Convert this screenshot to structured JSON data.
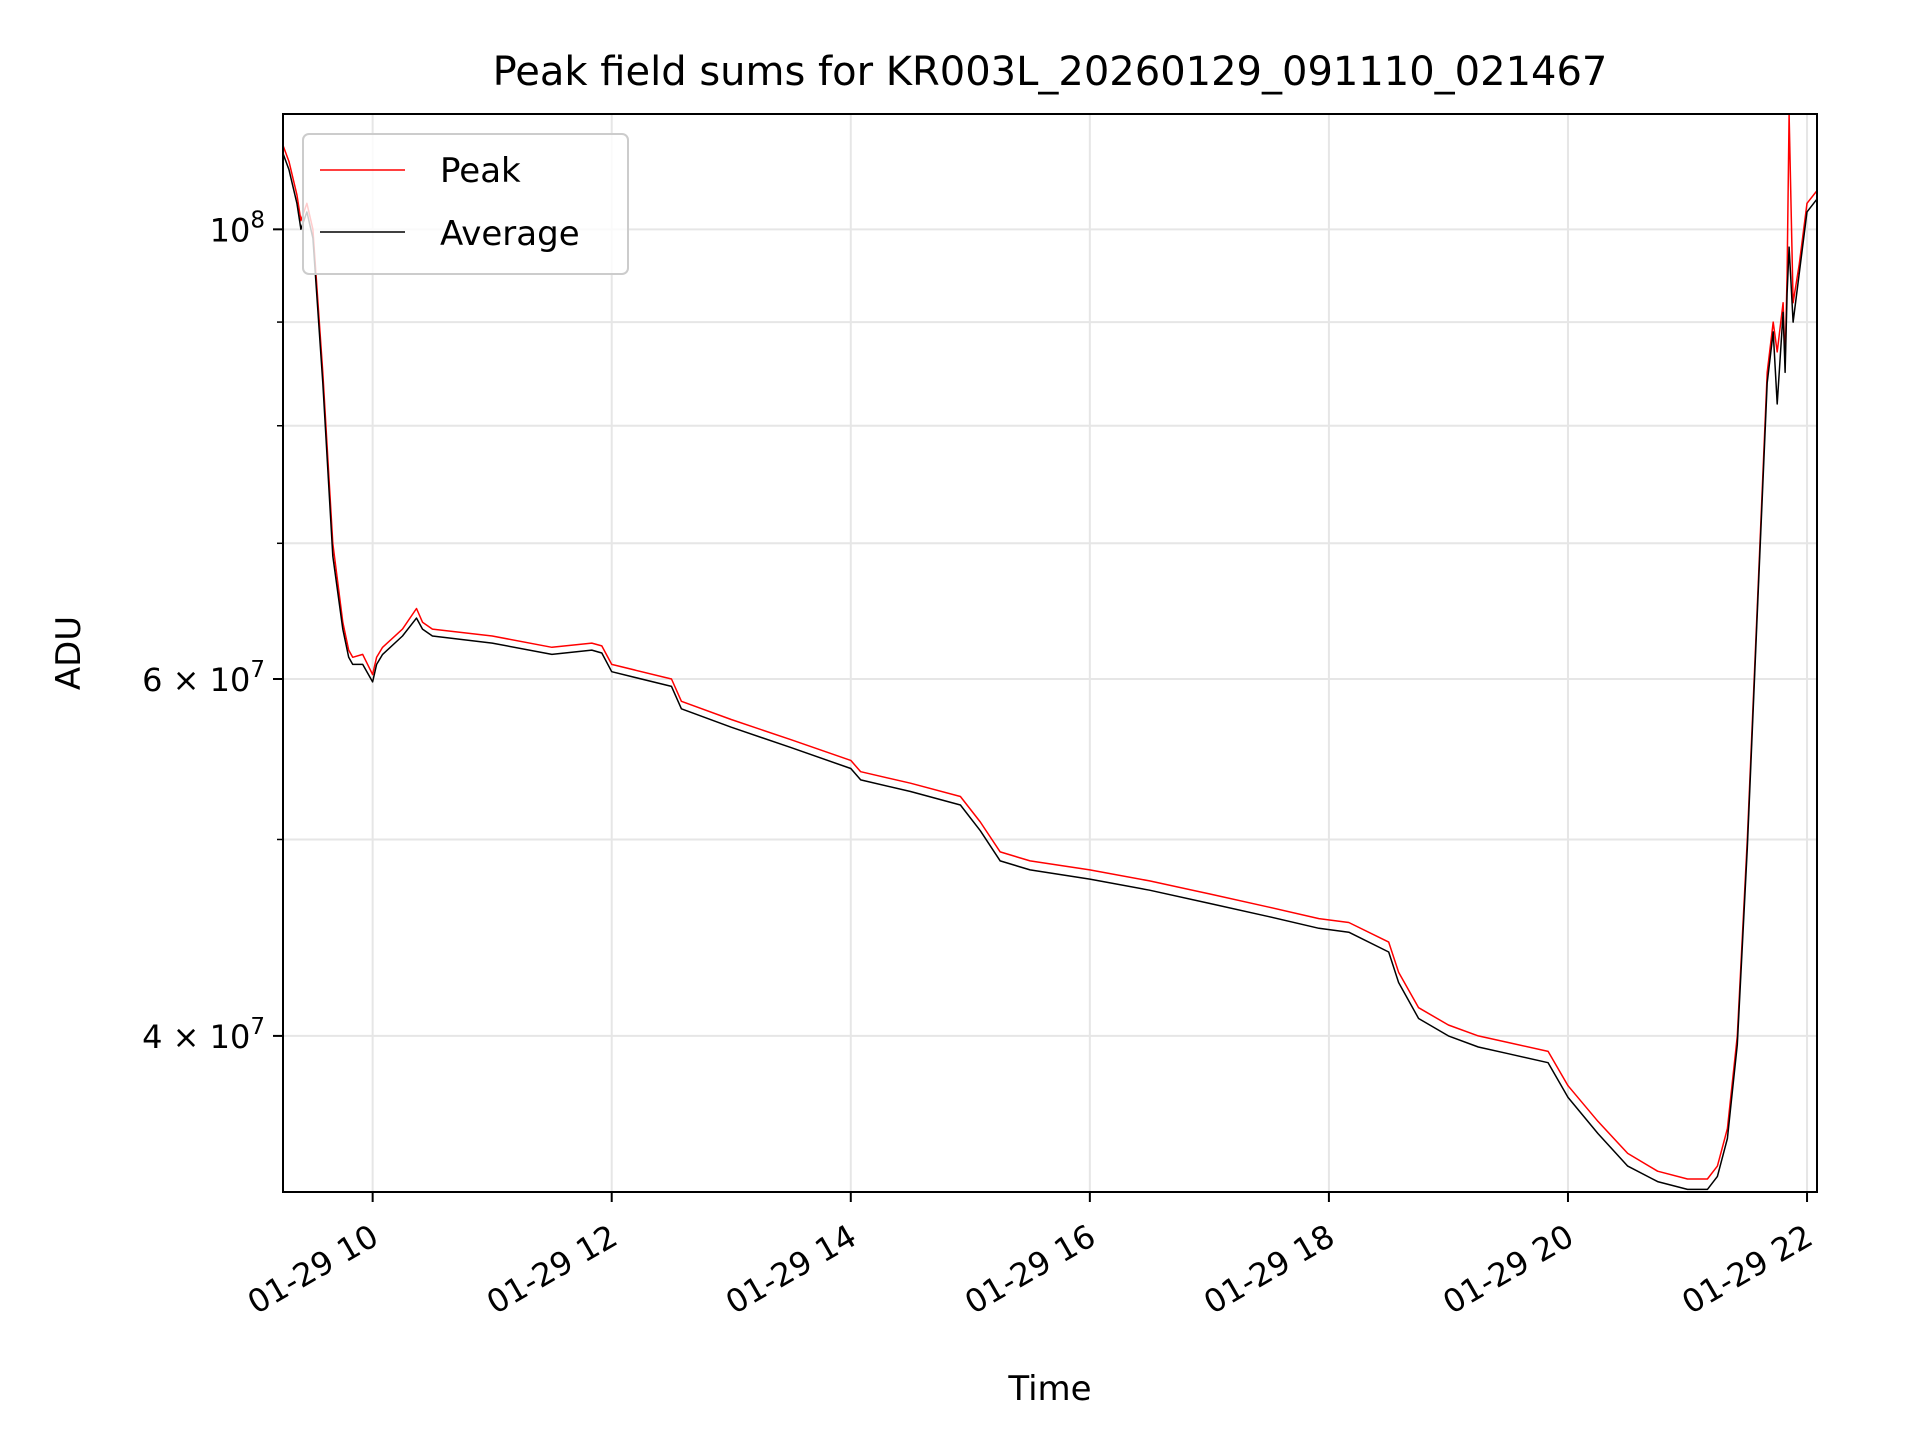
{
  "chart_data": {
    "type": "line",
    "title": "Peak field sums for KR003L_20260129_091110_021467",
    "xlabel": "Time",
    "ylabel": "ADU",
    "yscale": "log",
    "xlim": [
      "2026-01-29T09:15",
      "2026-01-29T22:05"
    ],
    "ylim": [
      33500000,
      114000000
    ],
    "grid": true,
    "legend": "upper-left",
    "x_ticks": [
      {
        "value": "2026-01-29T10:00",
        "label": "01-29 10"
      },
      {
        "value": "2026-01-29T12:00",
        "label": "01-29 12"
      },
      {
        "value": "2026-01-29T14:00",
        "label": "01-29 14"
      },
      {
        "value": "2026-01-29T16:00",
        "label": "01-29 16"
      },
      {
        "value": "2026-01-29T18:00",
        "label": "01-29 18"
      },
      {
        "value": "2026-01-29T20:00",
        "label": "01-29 20"
      },
      {
        "value": "2026-01-29T22:00",
        "label": "01-29 22"
      }
    ],
    "y_major_ticks": [
      {
        "value": 100000000,
        "base": "10",
        "exp": "8"
      },
      {
        "value": 60000000,
        "base": "6 × 10",
        "exp": "7"
      },
      {
        "value": 40000000,
        "base": "4 × 10",
        "exp": "7"
      }
    ],
    "y_minor_ticks": [
      50000000,
      70000000,
      80000000,
      90000000
    ],
    "series": [
      {
        "name": "Peak",
        "color": "#ff0000",
        "x": [
          "2026-01-29T09:15",
          "2026-01-29T09:18",
          "2026-01-29T09:22",
          "2026-01-29T09:24",
          "2026-01-29T09:27",
          "2026-01-29T09:30",
          "2026-01-29T09:35",
          "2026-01-29T09:40",
          "2026-01-29T09:45",
          "2026-01-29T09:48",
          "2026-01-29T09:50",
          "2026-01-29T09:55",
          "2026-01-29T10:00",
          "2026-01-29T10:02",
          "2026-01-29T10:05",
          "2026-01-29T10:15",
          "2026-01-29T10:22",
          "2026-01-29T10:25",
          "2026-01-29T10:30",
          "2026-01-29T11:00",
          "2026-01-29T11:30",
          "2026-01-29T11:50",
          "2026-01-29T11:55",
          "2026-01-29T12:00",
          "2026-01-29T12:30",
          "2026-01-29T12:35",
          "2026-01-29T13:00",
          "2026-01-29T13:30",
          "2026-01-29T14:00",
          "2026-01-29T14:05",
          "2026-01-29T14:30",
          "2026-01-29T14:55",
          "2026-01-29T15:05",
          "2026-01-29T15:15",
          "2026-01-29T15:30",
          "2026-01-29T16:00",
          "2026-01-29T16:30",
          "2026-01-29T17:00",
          "2026-01-29T17:30",
          "2026-01-29T17:55",
          "2026-01-29T18:10",
          "2026-01-29T18:30",
          "2026-01-29T18:35",
          "2026-01-29T18:45",
          "2026-01-29T19:00",
          "2026-01-29T19:15",
          "2026-01-29T19:30",
          "2026-01-29T19:50",
          "2026-01-29T20:00",
          "2026-01-29T20:15",
          "2026-01-29T20:30",
          "2026-01-29T20:45",
          "2026-01-29T21:00",
          "2026-01-29T21:10",
          "2026-01-29T21:15",
          "2026-01-29T21:20",
          "2026-01-29T21:25",
          "2026-01-29T21:30",
          "2026-01-29T21:35",
          "2026-01-29T21:40",
          "2026-01-29T21:43",
          "2026-01-29T21:45",
          "2026-01-29T21:48",
          "2026-01-29T21:49",
          "2026-01-29T21:50",
          "2026-01-29T21:51",
          "2026-01-29T21:53",
          "2026-01-29T21:56",
          "2026-01-29T22:00",
          "2026-01-29T22:05"
        ],
        "values": [
          110000000,
          108000000,
          104000000,
          101000000,
          103000000,
          100000000,
          85000000,
          70000000,
          64000000,
          62000000,
          61500000,
          61700000,
          60300000,
          61500000,
          62200000,
          63500000,
          65000000,
          64000000,
          63500000,
          63000000,
          62200000,
          62500000,
          62300000,
          61000000,
          60000000,
          58500000,
          57300000,
          56000000,
          54700000,
          54000000,
          53300000,
          52500000,
          51000000,
          49300000,
          48800000,
          48300000,
          47700000,
          47000000,
          46300000,
          45700000,
          45500000,
          44500000,
          43000000,
          41300000,
          40500000,
          40000000,
          39700000,
          39300000,
          37800000,
          36300000,
          35000000,
          34300000,
          34000000,
          34000000,
          34500000,
          36000000,
          40000000,
          50000000,
          65000000,
          85000000,
          90000000,
          87000000,
          92000000,
          86000000,
          95000000,
          114000000,
          92000000,
          96000000,
          103000000,
          104500000
        ]
      },
      {
        "name": "Average",
        "color": "#000000",
        "x": [
          "2026-01-29T09:15",
          "2026-01-29T09:18",
          "2026-01-29T09:22",
          "2026-01-29T09:24",
          "2026-01-29T09:27",
          "2026-01-29T09:30",
          "2026-01-29T09:35",
          "2026-01-29T09:40",
          "2026-01-29T09:45",
          "2026-01-29T09:48",
          "2026-01-29T09:50",
          "2026-01-29T09:55",
          "2026-01-29T10:00",
          "2026-01-29T10:02",
          "2026-01-29T10:05",
          "2026-01-29T10:15",
          "2026-01-29T10:22",
          "2026-01-29T10:25",
          "2026-01-29T10:30",
          "2026-01-29T11:00",
          "2026-01-29T11:30",
          "2026-01-29T11:50",
          "2026-01-29T11:55",
          "2026-01-29T12:00",
          "2026-01-29T12:30",
          "2026-01-29T12:35",
          "2026-01-29T13:00",
          "2026-01-29T13:30",
          "2026-01-29T14:00",
          "2026-01-29T14:05",
          "2026-01-29T14:30",
          "2026-01-29T14:55",
          "2026-01-29T15:05",
          "2026-01-29T15:15",
          "2026-01-29T15:30",
          "2026-01-29T16:00",
          "2026-01-29T16:30",
          "2026-01-29T17:00",
          "2026-01-29T17:30",
          "2026-01-29T17:55",
          "2026-01-29T18:10",
          "2026-01-29T18:30",
          "2026-01-29T18:35",
          "2026-01-29T18:45",
          "2026-01-29T19:00",
          "2026-01-29T19:15",
          "2026-01-29T19:30",
          "2026-01-29T19:50",
          "2026-01-29T20:00",
          "2026-01-29T20:15",
          "2026-01-29T20:30",
          "2026-01-29T20:45",
          "2026-01-29T21:00",
          "2026-01-29T21:10",
          "2026-01-29T21:15",
          "2026-01-29T21:20",
          "2026-01-29T21:25",
          "2026-01-29T21:30",
          "2026-01-29T21:35",
          "2026-01-29T21:40",
          "2026-01-29T21:43",
          "2026-01-29T21:45",
          "2026-01-29T21:48",
          "2026-01-29T21:49",
          "2026-01-29T21:50",
          "2026-01-29T21:51",
          "2026-01-29T21:53",
          "2026-01-29T21:56",
          "2026-01-29T22:00",
          "2026-01-29T22:05"
        ],
        "values": [
          109000000,
          107000000,
          103000000,
          100000000,
          102000000,
          99000000,
          84000000,
          69000000,
          63500000,
          61500000,
          61000000,
          61000000,
          59800000,
          61000000,
          61700000,
          63000000,
          64300000,
          63500000,
          63000000,
          62500000,
          61700000,
          62000000,
          61800000,
          60500000,
          59500000,
          58000000,
          56800000,
          55500000,
          54200000,
          53500000,
          52800000,
          52000000,
          50500000,
          48800000,
          48300000,
          47800000,
          47200000,
          46500000,
          45800000,
          45200000,
          45000000,
          44000000,
          42500000,
          40800000,
          40000000,
          39500000,
          39200000,
          38800000,
          37300000,
          35800000,
          34500000,
          33900000,
          33600000,
          33600000,
          34100000,
          35600000,
          39600000,
          49500000,
          64500000,
          84000000,
          89000000,
          82000000,
          91000000,
          85000000,
          93000000,
          98000000,
          90000000,
          95000000,
          102000000,
          103500000
        ]
      }
    ]
  }
}
